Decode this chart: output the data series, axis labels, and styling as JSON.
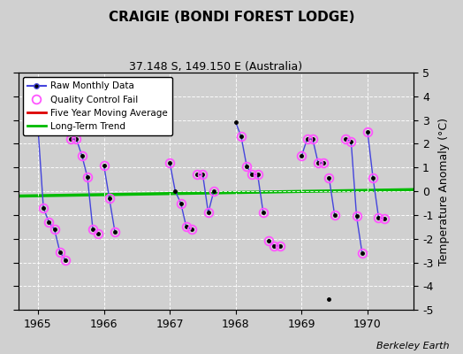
{
  "title": "CRAIGIE (BONDI FOREST LODGE)",
  "subtitle": "37.148 S, 149.150 E (Australia)",
  "ylabel": "Temperature Anomaly (°C)",
  "credit": "Berkeley Earth",
  "ylim": [
    -5,
    5
  ],
  "xlim": [
    1964.7,
    1970.7
  ],
  "xticks": [
    1965,
    1966,
    1967,
    1968,
    1969,
    1970
  ],
  "yticks": [
    -5,
    -4,
    -3,
    -2,
    -1,
    0,
    1,
    2,
    3,
    4,
    5
  ],
  "background_color": "#d0d0d0",
  "plot_bg_color": "#d0d0d0",
  "segments": [
    [
      [
        1965.0,
        2.7
      ],
      [
        1965.083,
        -0.7
      ],
      [
        1965.167,
        -1.3
      ],
      [
        1965.25,
        -1.6
      ],
      [
        1965.333,
        -2.55
      ],
      [
        1965.417,
        -2.9
      ]
    ],
    [
      [
        1965.5,
        2.2
      ],
      [
        1965.583,
        2.2
      ],
      [
        1965.667,
        1.5
      ],
      [
        1965.75,
        0.6
      ],
      [
        1965.833,
        -1.6
      ],
      [
        1965.917,
        -1.8
      ]
    ],
    [
      [
        1966.0,
        1.1
      ],
      [
        1966.083,
        -0.3
      ],
      [
        1966.167,
        -1.7
      ]
    ],
    [
      [
        1967.0,
        1.2
      ],
      [
        1967.083,
        0.0
      ],
      [
        1967.167,
        -0.5
      ],
      [
        1967.25,
        -1.5
      ],
      [
        1967.333,
        -1.6
      ]
    ],
    [
      [
        1967.417,
        0.7
      ],
      [
        1967.5,
        0.7
      ],
      [
        1967.583,
        -0.9
      ],
      [
        1967.667,
        0.0
      ]
    ],
    [
      [
        1968.0,
        2.9
      ],
      [
        1968.083,
        2.3
      ],
      [
        1968.167,
        1.05
      ],
      [
        1968.25,
        0.7
      ],
      [
        1968.333,
        0.7
      ],
      [
        1968.417,
        -0.9
      ]
    ],
    [
      [
        1968.5,
        -2.1
      ],
      [
        1968.583,
        -2.3
      ],
      [
        1968.667,
        -2.3
      ]
    ],
    [
      [
        1969.0,
        1.5
      ],
      [
        1969.083,
        2.2
      ],
      [
        1969.167,
        2.2
      ],
      [
        1969.25,
        1.2
      ],
      [
        1969.333,
        1.2
      ]
    ],
    [
      [
        1969.417,
        0.55
      ],
      [
        1969.5,
        -1.0
      ]
    ],
    [
      [
        1969.667,
        2.2
      ],
      [
        1969.75,
        2.1
      ],
      [
        1969.833,
        -1.05
      ],
      [
        1969.917,
        -2.6
      ]
    ],
    [
      [
        1970.0,
        2.5
      ],
      [
        1970.083,
        0.55
      ],
      [
        1970.167,
        -1.1
      ],
      [
        1970.25,
        -1.15
      ]
    ]
  ],
  "all_qc_points": [
    [
      1965.0,
      2.7
    ],
    [
      1965.083,
      -0.7
    ],
    [
      1965.167,
      -1.3
    ],
    [
      1965.25,
      -1.6
    ],
    [
      1965.333,
      -2.55
    ],
    [
      1965.417,
      -2.9
    ],
    [
      1965.5,
      2.2
    ],
    [
      1965.583,
      2.2
    ],
    [
      1965.667,
      1.5
    ],
    [
      1965.75,
      0.6
    ],
    [
      1965.833,
      -1.6
    ],
    [
      1965.917,
      -1.8
    ],
    [
      1966.0,
      1.1
    ],
    [
      1966.083,
      -0.3
    ],
    [
      1966.167,
      -1.7
    ],
    [
      1967.0,
      1.2
    ],
    [
      1967.167,
      -0.5
    ],
    [
      1967.25,
      -1.5
    ],
    [
      1967.333,
      -1.6
    ],
    [
      1967.417,
      0.7
    ],
    [
      1967.5,
      0.7
    ],
    [
      1967.583,
      -0.9
    ],
    [
      1967.667,
      0.0
    ],
    [
      1968.083,
      2.3
    ],
    [
      1968.167,
      1.05
    ],
    [
      1968.25,
      0.7
    ],
    [
      1968.333,
      0.7
    ],
    [
      1968.417,
      -0.9
    ],
    [
      1968.5,
      -2.1
    ],
    [
      1968.583,
      -2.3
    ],
    [
      1968.667,
      -2.3
    ],
    [
      1969.0,
      1.5
    ],
    [
      1969.083,
      2.2
    ],
    [
      1969.167,
      2.2
    ],
    [
      1969.25,
      1.2
    ],
    [
      1969.333,
      1.2
    ],
    [
      1969.417,
      0.55
    ],
    [
      1969.5,
      -1.0
    ],
    [
      1969.667,
      2.2
    ],
    [
      1969.75,
      2.1
    ],
    [
      1969.833,
      -1.05
    ],
    [
      1969.917,
      -2.6
    ],
    [
      1970.0,
      2.5
    ],
    [
      1970.083,
      0.55
    ],
    [
      1970.167,
      -1.1
    ],
    [
      1970.25,
      -1.15
    ]
  ],
  "isolated_dot": [
    1969.417,
    -4.55
  ],
  "trend_x": [
    1964.7,
    1970.7
  ],
  "trend_y": [
    -0.2,
    0.07
  ],
  "line_color": "#4444dd",
  "dot_color": "#000000",
  "qc_color": "#ff55ff",
  "trend_color": "#00bb00",
  "moving_avg_color": "#dd0000"
}
